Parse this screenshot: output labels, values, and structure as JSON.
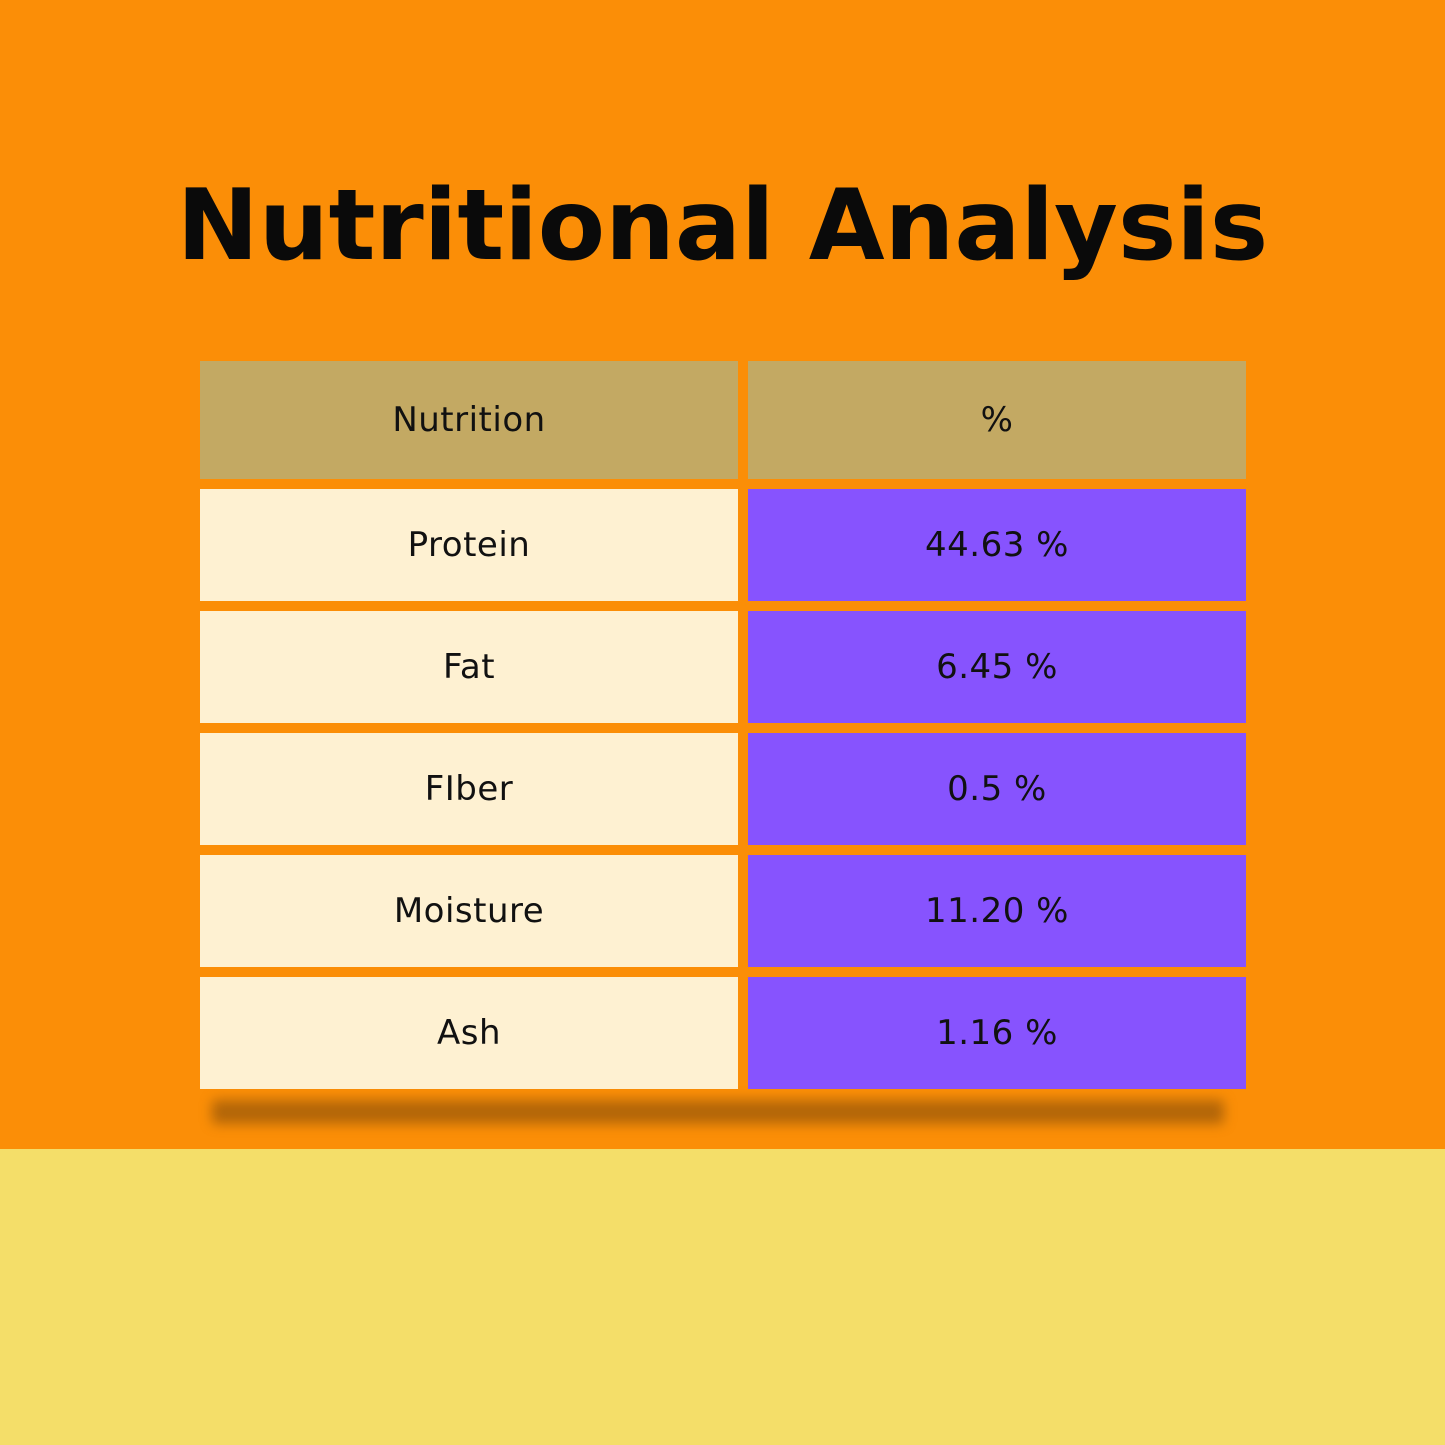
{
  "title": "Nutritional Analysis",
  "colors": {
    "background_top": "#fb8e07",
    "background_bottom": "#f4de69",
    "header_cell": "#c3a963",
    "label_cell": "#fef1d2",
    "value_cell": "#8753fe",
    "text": "#111111"
  },
  "table": {
    "headers": [
      "Nutrition",
      "%"
    ],
    "rows": [
      {
        "nutrient": "Protein",
        "value": "44.63 %"
      },
      {
        "nutrient": "Fat",
        "value": "6.45 %"
      },
      {
        "nutrient": "FIber",
        "value": "0.5 %"
      },
      {
        "nutrient": "Moisture",
        "value": "11.20 %"
      },
      {
        "nutrient": "Ash",
        "value": "1.16 %"
      }
    ]
  }
}
